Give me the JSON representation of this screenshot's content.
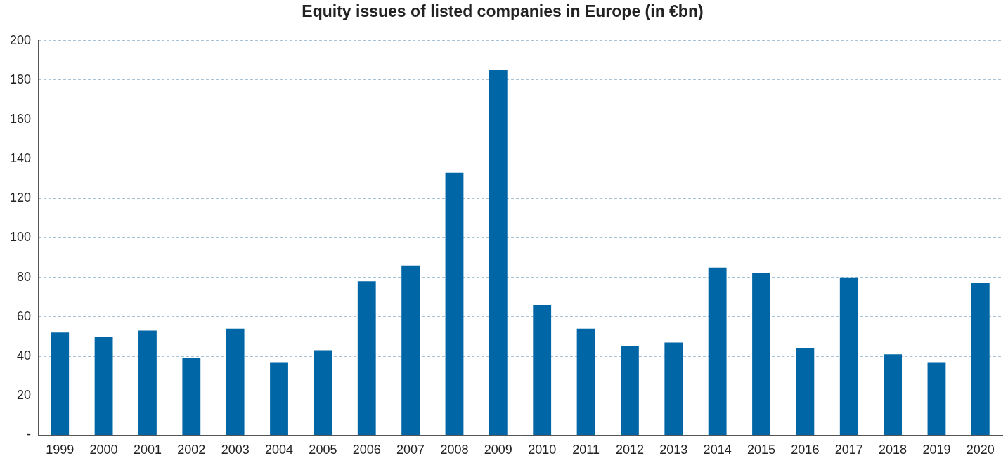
{
  "chart_data": {
    "type": "bar",
    "title": "Equity issues of listed companies in Europe (in €bn)",
    "categories": [
      "1999",
      "2000",
      "2001",
      "2002",
      "2003",
      "2004",
      "2005",
      "2006",
      "2007",
      "2008",
      "2009",
      "2010",
      "2011",
      "2012",
      "2013",
      "2014",
      "2015",
      "2016",
      "2017",
      "2018",
      "2019",
      "2020"
    ],
    "values": [
      52,
      50,
      53,
      39,
      54,
      37,
      43,
      78,
      86,
      133,
      185,
      66,
      54,
      45,
      47,
      85,
      82,
      44,
      80,
      41,
      37,
      77
    ],
    "color": "#0066a6",
    "ylim": [
      0,
      200
    ],
    "yticks": [
      {
        "value": 0,
        "label": "-"
      },
      20,
      40,
      60,
      80,
      100,
      120,
      140,
      160,
      180,
      200
    ],
    "grid": true
  }
}
